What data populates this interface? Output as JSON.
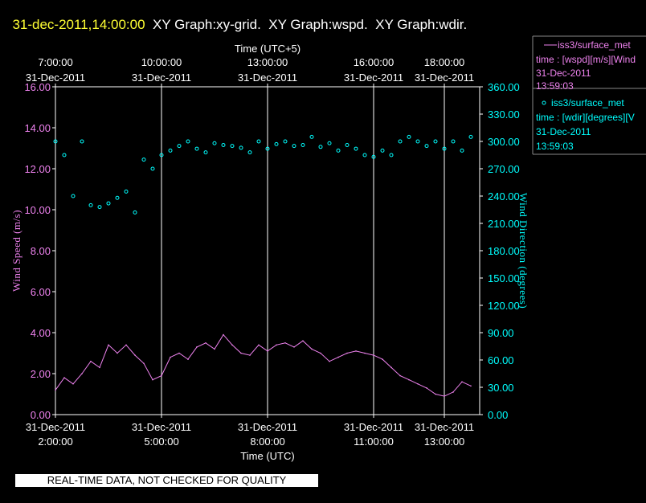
{
  "header": {
    "datetime": "31-dec-2011,14:00:00",
    "rest": "  XY Graph:xy-grid.  XY Graph:wspd.  XY Graph:wdir."
  },
  "footer": {
    "quality_note": "REAL-TIME DATA, NOT CHECKED FOR QUALITY"
  },
  "colors": {
    "bg": "#000000",
    "wspd": "#ee82ee",
    "wdir": "#00ffff",
    "title": "#ffff33",
    "text": "#ffffff",
    "grid": "#ffffff"
  },
  "chart_data": {
    "type": "line+scatter",
    "title": "XY Graph: wspd / wdir",
    "top_axis": {
      "label": "Time (UTC+5)",
      "ticks": [
        {
          "hour": 2,
          "time": "7:00:00",
          "date": "31-Dec-2011"
        },
        {
          "hour": 5,
          "time": "10:00:00",
          "date": "31-Dec-2011"
        },
        {
          "hour": 8,
          "time": "13:00:00",
          "date": "31-Dec-2011"
        },
        {
          "hour": 11,
          "time": "16:00:00",
          "date": "31-Dec-2011"
        },
        {
          "hour": 13,
          "time": "18:00:00",
          "date": "31-Dec-2011"
        }
      ]
    },
    "bottom_axis": {
      "label": "Time (UTC)",
      "xlim_hours": [
        2,
        14
      ],
      "ticks": [
        {
          "hour": 2,
          "time": "2:00:00",
          "date": "31-Dec-2011"
        },
        {
          "hour": 5,
          "time": "5:00:00",
          "date": "31-Dec-2011"
        },
        {
          "hour": 8,
          "time": "8:00:00",
          "date": "31-Dec-2011"
        },
        {
          "hour": 11,
          "time": "11:00:00",
          "date": "31-Dec-2011"
        },
        {
          "hour": 13,
          "time": "13:00:00",
          "date": "31-Dec-2011"
        }
      ],
      "gridlines_hours": [
        5,
        8,
        11,
        13
      ]
    },
    "left_axis": {
      "label": "Wind Speed (m/s)",
      "ylim": [
        0,
        16
      ],
      "ticks": [
        "0.00",
        "2.00",
        "4.00",
        "6.00",
        "8.00",
        "10.00",
        "12.00",
        "14.00",
        "16.00"
      ]
    },
    "right_axis": {
      "label": "Wind Direction (degrees)",
      "ylim": [
        0,
        360
      ],
      "ticks": [
        "0.00",
        "30.00",
        "60.00",
        "90.00",
        "120.00",
        "150.00",
        "180.00",
        "210.00",
        "240.00",
        "270.00",
        "300.00",
        "330.00",
        "360.00"
      ]
    },
    "series": [
      {
        "name": "wspd",
        "style": "line",
        "axis": "left",
        "legend": [
          "iss3/surface_met",
          "time : [wspd][m/s][Wind",
          "31-Dec-2011",
          "13:59:03"
        ],
        "points": [
          [
            2.0,
            1.2
          ],
          [
            2.25,
            1.8
          ],
          [
            2.5,
            1.5
          ],
          [
            2.75,
            2.0
          ],
          [
            3.0,
            2.6
          ],
          [
            3.25,
            2.3
          ],
          [
            3.5,
            3.4
          ],
          [
            3.75,
            3.0
          ],
          [
            4.0,
            3.4
          ],
          [
            4.25,
            2.9
          ],
          [
            4.5,
            2.5
          ],
          [
            4.75,
            1.7
          ],
          [
            5.0,
            1.9
          ],
          [
            5.25,
            2.8
          ],
          [
            5.5,
            3.0
          ],
          [
            5.75,
            2.7
          ],
          [
            6.0,
            3.3
          ],
          [
            6.25,
            3.5
          ],
          [
            6.5,
            3.2
          ],
          [
            6.75,
            3.9
          ],
          [
            7.0,
            3.4
          ],
          [
            7.25,
            3.0
          ],
          [
            7.5,
            2.9
          ],
          [
            7.75,
            3.4
          ],
          [
            8.0,
            3.1
          ],
          [
            8.25,
            3.4
          ],
          [
            8.5,
            3.5
          ],
          [
            8.75,
            3.3
          ],
          [
            9.0,
            3.6
          ],
          [
            9.25,
            3.2
          ],
          [
            9.5,
            3.0
          ],
          [
            9.75,
            2.6
          ],
          [
            10.0,
            2.8
          ],
          [
            10.25,
            3.0
          ],
          [
            10.5,
            3.1
          ],
          [
            10.75,
            3.0
          ],
          [
            11.0,
            2.9
          ],
          [
            11.25,
            2.7
          ],
          [
            11.5,
            2.3
          ],
          [
            11.75,
            1.9
          ],
          [
            12.0,
            1.7
          ],
          [
            12.25,
            1.5
          ],
          [
            12.5,
            1.3
          ],
          [
            12.75,
            1.0
          ],
          [
            13.0,
            0.9
          ],
          [
            13.25,
            1.1
          ],
          [
            13.5,
            1.6
          ],
          [
            13.75,
            1.4
          ]
        ]
      },
      {
        "name": "wdir",
        "style": "scatter",
        "axis": "right",
        "legend": [
          "iss3/surface_met",
          "time : [wdir][degrees][V",
          "31-Dec-2011",
          "13:59:03"
        ],
        "points": [
          [
            2.0,
            300
          ],
          [
            2.25,
            285
          ],
          [
            2.5,
            240
          ],
          [
            2.75,
            300
          ],
          [
            3.0,
            230
          ],
          [
            3.25,
            228
          ],
          [
            3.5,
            232
          ],
          [
            3.75,
            238
          ],
          [
            4.0,
            245
          ],
          [
            4.25,
            222
          ],
          [
            4.5,
            280
          ],
          [
            4.75,
            270
          ],
          [
            5.0,
            285
          ],
          [
            5.25,
            290
          ],
          [
            5.5,
            295
          ],
          [
            5.75,
            300
          ],
          [
            6.0,
            292
          ],
          [
            6.25,
            288
          ],
          [
            6.5,
            298
          ],
          [
            6.75,
            296
          ],
          [
            7.0,
            295
          ],
          [
            7.25,
            293
          ],
          [
            7.5,
            288
          ],
          [
            7.75,
            300
          ],
          [
            8.0,
            292
          ],
          [
            8.25,
            297
          ],
          [
            8.5,
            300
          ],
          [
            8.75,
            295
          ],
          [
            9.0,
            296
          ],
          [
            9.25,
            305
          ],
          [
            9.5,
            294
          ],
          [
            9.75,
            298
          ],
          [
            10.0,
            290
          ],
          [
            10.25,
            296
          ],
          [
            10.5,
            292
          ],
          [
            10.75,
            285
          ],
          [
            11.0,
            283
          ],
          [
            11.25,
            290
          ],
          [
            11.5,
            285
          ],
          [
            11.75,
            300
          ],
          [
            12.0,
            305
          ],
          [
            12.25,
            300
          ],
          [
            12.5,
            295
          ],
          [
            12.75,
            300
          ],
          [
            13.0,
            292
          ],
          [
            13.25,
            300
          ],
          [
            13.5,
            290
          ],
          [
            13.75,
            305
          ]
        ]
      }
    ]
  }
}
